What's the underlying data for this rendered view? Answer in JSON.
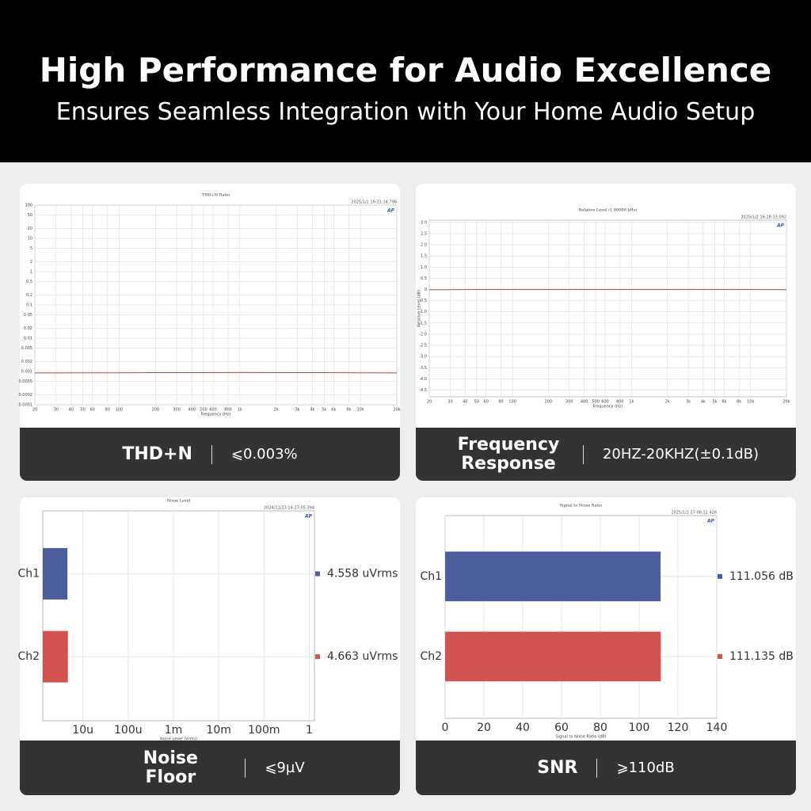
{
  "header": {
    "title": "High Performance for Audio Excellence",
    "subtitle": "Ensures Seamless Integration with Your Home Audio Setup"
  },
  "chart_data": [
    {
      "type": "line",
      "title": "THD+N Ratio",
      "timestamp": "2025/1/2 16:21:14.796",
      "xlabel": "Frequency (Hz)",
      "xscale": "log",
      "yscale": "log",
      "xlim": [
        20,
        20000
      ],
      "ylim": [
        0.0001,
        100
      ],
      "grid": true,
      "color": "#b24a4a",
      "xticks": [
        20,
        30,
        40,
        50,
        60,
        80,
        100,
        200,
        300,
        400,
        500,
        600,
        800,
        {
          "value": 1000,
          "label": "1k"
        },
        {
          "value": 2000,
          "label": "2k"
        },
        {
          "value": 3000,
          "label": "3k"
        },
        {
          "value": 4000,
          "label": "4k"
        },
        {
          "value": 5000,
          "label": "5k"
        },
        {
          "value": 6000,
          "label": "6k"
        },
        {
          "value": 8000,
          "label": "8k"
        },
        {
          "value": 10000,
          "label": "10k"
        },
        {
          "value": 20000,
          "label": "20k"
        }
      ],
      "yticks": [
        100,
        50,
        20,
        10,
        5,
        2,
        1,
        0.5,
        0.2,
        0.1,
        0.05,
        0.02,
        0.01,
        0.005,
        0.002,
        0.001,
        0.0005,
        0.0002,
        0.0001
      ],
      "x": [
        20,
        30,
        50,
        100,
        200,
        500,
        1000,
        2000,
        5000,
        10000,
        20000
      ],
      "values": [
        0.0009,
        0.0009,
        0.00091,
        0.00091,
        0.00092,
        0.00092,
        0.00093,
        0.00092,
        0.00092,
        0.00091,
        0.0009
      ],
      "caption": {
        "label": "THD+N",
        "value": "⩽0.003%"
      }
    },
    {
      "type": "line",
      "title": "Relative Level (1.00000 kHz)",
      "timestamp": "2025/1/2 16:18:33.092",
      "xlabel": "Frequency (Hz)",
      "ylabel": "Relative Level (dB)",
      "xscale": "log",
      "yscale": "linear",
      "xlim": [
        20,
        20000
      ],
      "ylim": [
        -4.8,
        3.1
      ],
      "grid": true,
      "color": "#b24a4a",
      "xticks": [
        20,
        30,
        40,
        50,
        60,
        80,
        100,
        200,
        300,
        400,
        500,
        600,
        800,
        {
          "value": 1000,
          "label": "1k"
        },
        {
          "value": 2000,
          "label": "2k"
        },
        {
          "value": 3000,
          "label": "3k"
        },
        {
          "value": 4000,
          "label": "4k"
        },
        {
          "value": 5000,
          "label": "5k"
        },
        {
          "value": 6000,
          "label": "6k"
        },
        {
          "value": 8000,
          "label": "8k"
        },
        {
          "value": 10000,
          "label": "10k"
        },
        {
          "value": 20000,
          "label": "20k"
        }
      ],
      "yticks": [
        {
          "value": 3,
          "label": "3.0"
        },
        2.5,
        {
          "value": 2,
          "label": "2.0"
        },
        1.5,
        {
          "value": 1,
          "label": "1.0"
        },
        0.5,
        0,
        -0.5,
        {
          "value": -1,
          "label": "-1.0"
        },
        -1.5,
        {
          "value": -2,
          "label": "-2.0"
        },
        -2.5,
        {
          "value": -3,
          "label": "-3.0"
        },
        -3.5,
        {
          "value": -4,
          "label": "-4.0"
        },
        -4.5
      ],
      "x": [
        20,
        30,
        50,
        100,
        200,
        500,
        1000,
        2000,
        5000,
        10000,
        20000
      ],
      "values": [
        -0.01,
        -0.01,
        0,
        0,
        0,
        0,
        0,
        0,
        0,
        0,
        -0.01
      ],
      "caption": {
        "label": "Frequency Response",
        "value": "20HZ-20KHZ(±0.1dB)"
      }
    },
    {
      "type": "hbar",
      "title": "Noise Level",
      "timestamp": "2024/11/23 14:27:05.394",
      "xlabel": "Noise Level (Vrms)",
      "xscale": "log",
      "xlim": [
        1.3e-06,
        1.3
      ],
      "grid": true,
      "xticks": [
        {
          "value": 1e-05,
          "label": "10u"
        },
        {
          "value": 0.0001,
          "label": "100u"
        },
        {
          "value": 0.001,
          "label": "1m"
        },
        {
          "value": 0.01,
          "label": "10m"
        },
        {
          "value": 0.1,
          "label": "100m"
        },
        1
      ],
      "categories": [
        "Ch1",
        "Ch2"
      ],
      "values": [
        4.558e-06,
        4.663e-06
      ],
      "value_labels": [
        "4.558 uVrms",
        "4.663 uVrms"
      ],
      "colors": [
        "#4a5f9c",
        "#d0534f"
      ],
      "caption": {
        "label": "Noise Floor",
        "value": "⩽9µV"
      }
    },
    {
      "type": "hbar",
      "title": "Signal to Noise Ratio",
      "timestamp": "2025/1/2 17:06:12.426",
      "xlabel": "Signal to Noise Ratio (dB)",
      "xscale": "linear",
      "xlim": [
        0,
        140
      ],
      "grid": true,
      "xticks": [
        0,
        20,
        40,
        60,
        80,
        100,
        120,
        140
      ],
      "categories": [
        "Ch1",
        "Ch2"
      ],
      "values": [
        111.056,
        111.135
      ],
      "value_labels": [
        "111.056 dB",
        "111.135 dB"
      ],
      "colors": [
        "#4a5f9c",
        "#d0534f"
      ],
      "caption": {
        "label": "SNR",
        "value": "⩾110dB"
      }
    }
  ]
}
